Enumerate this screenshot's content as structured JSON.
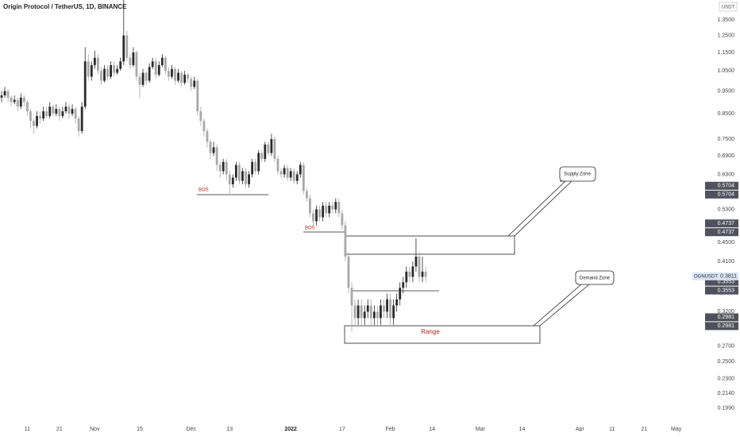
{
  "chart_data": {
    "type": "candlestick",
    "title": "Origin Protocol / TetherUS, 1D, BINANCE",
    "currency": "USDT",
    "log_scale": true,
    "up_color": "#2b2b2b",
    "down_color": "#a8a8a8",
    "ylim": [
      0.194,
      1.489
    ],
    "yticks": [
      {
        "value": 1.35,
        "label": "1.3500"
      },
      {
        "value": 1.25,
        "label": "1.2500"
      },
      {
        "value": 1.15,
        "label": "1.1500"
      },
      {
        "value": 1.05,
        "label": "1.0500"
      },
      {
        "value": 0.95,
        "label": "0.9500"
      },
      {
        "value": 0.85,
        "label": "0.8500"
      },
      {
        "value": 0.75,
        "label": "0.7500"
      },
      {
        "value": 0.69,
        "label": "0.6900"
      },
      {
        "value": 0.63,
        "label": "0.6300"
      },
      {
        "value": 0.53,
        "label": "0.5300"
      },
      {
        "value": 0.45,
        "label": "0.4500"
      },
      {
        "value": 0.41,
        "label": "0.4100"
      },
      {
        "value": 0.32,
        "label": "0.3200"
      },
      {
        "value": 0.27,
        "label": "0.2700"
      },
      {
        "value": 0.25,
        "label": "0.2500"
      },
      {
        "value": 0.23,
        "label": "0.2300"
      },
      {
        "value": 0.214,
        "label": "0.2140"
      },
      {
        "value": 0.199,
        "label": "0.1990"
      }
    ],
    "xlim": [
      -0.5,
      217
    ],
    "xticks": [
      {
        "value": 8,
        "label": "11"
      },
      {
        "value": 18,
        "label": "21"
      },
      {
        "value": 29,
        "label": "Nov"
      },
      {
        "value": 43,
        "label": "15"
      },
      {
        "value": 59,
        "label": "Dec"
      },
      {
        "value": 71,
        "label": "13"
      },
      {
        "value": 90,
        "label": "2022"
      },
      {
        "value": 106,
        "label": "17"
      },
      {
        "value": 121,
        "label": "Feb"
      },
      {
        "value": 134,
        "label": "14"
      },
      {
        "value": 149,
        "label": "Mar"
      },
      {
        "value": 162,
        "label": "14"
      },
      {
        "value": 180,
        "label": "Apr"
      },
      {
        "value": 190,
        "label": "11"
      },
      {
        "value": 200,
        "label": "21"
      },
      {
        "value": 210,
        "label": "May"
      }
    ],
    "ohlc": [
      [
        0.92,
        0.95,
        0.9,
        0.93
      ],
      [
        0.93,
        0.97,
        0.92,
        0.95
      ],
      [
        0.95,
        0.96,
        0.9,
        0.92
      ],
      [
        0.92,
        0.93,
        0.88,
        0.9
      ],
      [
        0.9,
        0.93,
        0.89,
        0.91
      ],
      [
        0.91,
        0.92,
        0.86,
        0.88
      ],
      [
        0.88,
        0.94,
        0.87,
        0.92
      ],
      [
        0.92,
        0.93,
        0.88,
        0.9
      ],
      [
        0.9,
        0.91,
        0.84,
        0.86
      ],
      [
        0.86,
        0.87,
        0.79,
        0.82
      ],
      [
        0.82,
        0.83,
        0.77,
        0.8
      ],
      [
        0.8,
        0.86,
        0.79,
        0.84
      ],
      [
        0.84,
        0.86,
        0.81,
        0.83
      ],
      [
        0.83,
        0.88,
        0.82,
        0.86
      ],
      [
        0.86,
        0.88,
        0.83,
        0.84
      ],
      [
        0.84,
        0.9,
        0.83,
        0.88
      ],
      [
        0.88,
        0.89,
        0.84,
        0.85
      ],
      [
        0.85,
        0.89,
        0.84,
        0.87
      ],
      [
        0.87,
        0.88,
        0.82,
        0.84
      ],
      [
        0.84,
        0.88,
        0.83,
        0.86
      ],
      [
        0.86,
        0.9,
        0.85,
        0.88
      ],
      [
        0.88,
        0.89,
        0.83,
        0.85
      ],
      [
        0.85,
        0.89,
        0.84,
        0.87
      ],
      [
        0.87,
        0.88,
        0.81,
        0.83
      ],
      [
        0.83,
        0.84,
        0.76,
        0.78
      ],
      [
        0.78,
        0.9,
        0.77,
        0.88
      ],
      [
        0.88,
        1.18,
        0.87,
        1.1
      ],
      [
        1.1,
        1.14,
        1.0,
        1.02
      ],
      [
        1.02,
        1.1,
        1.0,
        1.08
      ],
      [
        1.08,
        1.16,
        1.06,
        1.12
      ],
      [
        1.12,
        1.14,
        1.03,
        1.05
      ],
      [
        1.05,
        1.07,
        0.98,
        1.0
      ],
      [
        1.0,
        1.08,
        0.99,
        1.06
      ],
      [
        1.06,
        1.08,
        1.0,
        1.02
      ],
      [
        1.02,
        1.1,
        1.01,
        1.08
      ],
      [
        1.08,
        1.1,
        1.02,
        1.04
      ],
      [
        1.04,
        1.08,
        1.03,
        1.06
      ],
      [
        1.06,
        1.12,
        1.05,
        1.1
      ],
      [
        1.1,
        1.49,
        1.08,
        1.25
      ],
      [
        1.25,
        1.28,
        1.1,
        1.12
      ],
      [
        1.12,
        1.14,
        1.06,
        1.08
      ],
      [
        1.08,
        1.18,
        1.07,
        1.15
      ],
      [
        1.15,
        1.16,
        1.0,
        1.02
      ],
      [
        1.02,
        1.04,
        0.92,
        0.98
      ],
      [
        0.98,
        1.06,
        0.97,
        1.04
      ],
      [
        1.04,
        1.05,
        0.98,
        1.0
      ],
      [
        1.0,
        1.09,
        0.99,
        1.07
      ],
      [
        1.07,
        1.12,
        1.06,
        1.1
      ],
      [
        1.1,
        1.12,
        1.01,
        1.03
      ],
      [
        1.03,
        1.1,
        1.02,
        1.08
      ],
      [
        1.08,
        1.14,
        1.07,
        1.12
      ],
      [
        1.12,
        1.13,
        1.03,
        1.05
      ],
      [
        1.05,
        1.07,
        1.0,
        1.02
      ],
      [
        1.02,
        1.08,
        1.01,
        1.06
      ],
      [
        1.06,
        1.07,
        0.98,
        1.0
      ],
      [
        1.0,
        1.06,
        0.99,
        1.04
      ],
      [
        1.04,
        1.05,
        0.97,
        0.99
      ],
      [
        0.99,
        1.05,
        0.98,
        1.03
      ],
      [
        1.03,
        1.04,
        0.99,
        1.01
      ],
      [
        1.01,
        1.02,
        0.95,
        0.97
      ],
      [
        0.97,
        1.02,
        0.96,
        1.0
      ],
      [
        1.0,
        1.01,
        0.84,
        0.86
      ],
      [
        0.86,
        0.88,
        0.8,
        0.82
      ],
      [
        0.82,
        0.83,
        0.76,
        0.78
      ],
      [
        0.78,
        0.79,
        0.72,
        0.74
      ],
      [
        0.74,
        0.75,
        0.68,
        0.7
      ],
      [
        0.7,
        0.74,
        0.69,
        0.72
      ],
      [
        0.72,
        0.73,
        0.64,
        0.66
      ],
      [
        0.66,
        0.67,
        0.62,
        0.64
      ],
      [
        0.64,
        0.68,
        0.63,
        0.67
      ],
      [
        0.67,
        0.68,
        0.61,
        0.63
      ],
      [
        0.63,
        0.64,
        0.57,
        0.6
      ],
      [
        0.6,
        0.63,
        0.59,
        0.62
      ],
      [
        0.62,
        0.67,
        0.61,
        0.66
      ],
      [
        0.66,
        0.67,
        0.6,
        0.61
      ],
      [
        0.61,
        0.65,
        0.6,
        0.64
      ],
      [
        0.64,
        0.65,
        0.59,
        0.6
      ],
      [
        0.6,
        0.64,
        0.59,
        0.63
      ],
      [
        0.63,
        0.68,
        0.62,
        0.67
      ],
      [
        0.67,
        0.68,
        0.63,
        0.64
      ],
      [
        0.64,
        0.71,
        0.63,
        0.7
      ],
      [
        0.7,
        0.71,
        0.67,
        0.68
      ],
      [
        0.68,
        0.74,
        0.67,
        0.73
      ],
      [
        0.73,
        0.74,
        0.69,
        0.7
      ],
      [
        0.7,
        0.77,
        0.69,
        0.75
      ],
      [
        0.75,
        0.76,
        0.67,
        0.68
      ],
      [
        0.68,
        0.69,
        0.63,
        0.64
      ],
      [
        0.64,
        0.65,
        0.62,
        0.63
      ],
      [
        0.63,
        0.66,
        0.62,
        0.65
      ],
      [
        0.65,
        0.66,
        0.61,
        0.62
      ],
      [
        0.62,
        0.65,
        0.61,
        0.64
      ],
      [
        0.64,
        0.65,
        0.6,
        0.61
      ],
      [
        0.61,
        0.64,
        0.6,
        0.63
      ],
      [
        0.63,
        0.67,
        0.62,
        0.66
      ],
      [
        0.66,
        0.67,
        0.57,
        0.58
      ],
      [
        0.58,
        0.59,
        0.55,
        0.56
      ],
      [
        0.56,
        0.57,
        0.51,
        0.52
      ],
      [
        0.52,
        0.53,
        0.49,
        0.5
      ],
      [
        0.5,
        0.54,
        0.49,
        0.53
      ],
      [
        0.53,
        0.54,
        0.5,
        0.51
      ],
      [
        0.51,
        0.55,
        0.5,
        0.54
      ],
      [
        0.54,
        0.55,
        0.51,
        0.52
      ],
      [
        0.52,
        0.55,
        0.51,
        0.54
      ],
      [
        0.54,
        0.55,
        0.52,
        0.53
      ],
      [
        0.53,
        0.56,
        0.52,
        0.55
      ],
      [
        0.55,
        0.56,
        0.51,
        0.52
      ],
      [
        0.52,
        0.53,
        0.48,
        0.49
      ],
      [
        0.49,
        0.5,
        0.41,
        0.42
      ],
      [
        0.42,
        0.43,
        0.35,
        0.36
      ],
      [
        0.36,
        0.37,
        0.29,
        0.33
      ],
      [
        0.33,
        0.34,
        0.3,
        0.31
      ],
      [
        0.31,
        0.34,
        0.3,
        0.33
      ],
      [
        0.33,
        0.34,
        0.3,
        0.31
      ],
      [
        0.31,
        0.33,
        0.3,
        0.32
      ],
      [
        0.32,
        0.34,
        0.31,
        0.33
      ],
      [
        0.33,
        0.34,
        0.3,
        0.31
      ],
      [
        0.31,
        0.33,
        0.3,
        0.32
      ],
      [
        0.32,
        0.33,
        0.3,
        0.31
      ],
      [
        0.31,
        0.34,
        0.3,
        0.33
      ],
      [
        0.33,
        0.34,
        0.31,
        0.32
      ],
      [
        0.32,
        0.35,
        0.31,
        0.34
      ],
      [
        0.34,
        0.35,
        0.3,
        0.31
      ],
      [
        0.31,
        0.34,
        0.3,
        0.33
      ],
      [
        0.33,
        0.35,
        0.32,
        0.34
      ],
      [
        0.34,
        0.37,
        0.33,
        0.36
      ],
      [
        0.36,
        0.38,
        0.35,
        0.37
      ],
      [
        0.37,
        0.4,
        0.36,
        0.39
      ],
      [
        0.39,
        0.4,
        0.37,
        0.38
      ],
      [
        0.38,
        0.41,
        0.37,
        0.4
      ],
      [
        0.4,
        0.46,
        0.39,
        0.42
      ],
      [
        0.42,
        0.43,
        0.37,
        0.38
      ],
      [
        0.38,
        0.42,
        0.37,
        0.39
      ],
      [
        0.39,
        0.4,
        0.37,
        0.38
      ]
    ],
    "price_markers": [
      0.5704,
      0.5704,
      0.4737,
      0.4737,
      0.3553,
      0.3553,
      0.2981,
      0.2981
    ],
    "last_price": {
      "symbol": "OGNUSDT",
      "value": 0.3811
    },
    "annotations": {
      "bos": [
        "BOS",
        "BOS"
      ],
      "supply": "Supply Zone",
      "demand": "Demand Zone",
      "range": "Range"
    }
  }
}
